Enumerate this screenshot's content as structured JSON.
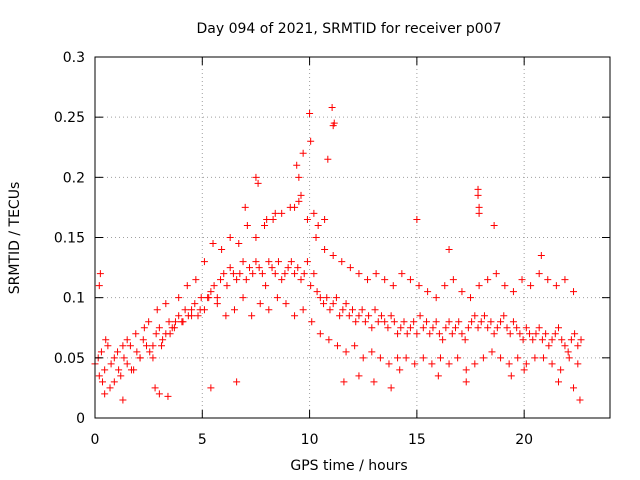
{
  "chart_data": {
    "type": "scatter",
    "title": "Day 094 of 2021, SRMTID for receiver p007",
    "xlabel": "GPS time / hours",
    "ylabel": "SRMTID / TECUs",
    "xlim": [
      0,
      24
    ],
    "ylim": [
      0,
      0.3
    ],
    "xticks": [
      0,
      5,
      10,
      15,
      20
    ],
    "xtick_labels": [
      "0",
      "5",
      "10",
      "15",
      "20"
    ],
    "yticks": [
      0,
      0.05,
      0.1,
      0.15,
      0.2,
      0.25,
      0.3
    ],
    "ytick_labels": [
      "0",
      "0.05",
      "0.1",
      "0.15",
      "0.2",
      "0.25",
      "0.3"
    ],
    "grid": true,
    "marker": "+",
    "marker_color": "#ff0000",
    "series": [
      {
        "name": "SRMTID",
        "x": [
          0.0,
          0.15,
          0.3,
          0.45,
          0.6,
          0.75,
          0.9,
          1.05,
          1.2,
          1.35,
          1.5,
          1.65,
          1.8,
          1.95,
          2.1,
          2.25,
          2.4,
          2.55,
          2.7,
          2.85,
          3.0,
          3.15,
          3.3,
          3.45,
          3.6,
          3.75,
          3.9,
          4.05,
          4.2,
          4.35,
          4.5,
          4.65,
          4.8,
          4.95,
          5.1,
          5.25,
          5.4,
          5.55,
          5.7,
          5.85,
          6.0,
          6.15,
          6.3,
          6.45,
          6.6,
          6.75,
          6.9,
          7.05,
          7.2,
          7.35,
          7.5,
          7.65,
          7.8,
          7.95,
          8.1,
          8.25,
          8.4,
          8.55,
          8.7,
          8.85,
          9.0,
          9.15,
          9.3,
          9.45,
          9.6,
          9.75,
          9.9,
          10.05,
          10.2,
          10.35,
          10.5,
          10.65,
          10.8,
          10.95,
          11.1,
          11.25,
          11.4,
          11.55,
          11.7,
          11.85,
          12.0,
          12.15,
          12.3,
          12.45,
          12.6,
          12.75,
          12.9,
          13.05,
          13.2,
          13.35,
          13.5,
          13.65,
          13.8,
          13.95,
          14.1,
          14.25,
          14.4,
          14.55,
          14.7,
          14.85,
          15.0,
          15.15,
          15.3,
          15.45,
          15.6,
          15.75,
          15.9,
          16.05,
          16.2,
          16.35,
          16.5,
          16.65,
          16.8,
          16.95,
          17.1,
          17.25,
          17.4,
          17.55,
          17.7,
          17.85,
          18.0,
          18.15,
          18.3,
          18.45,
          18.6,
          18.75,
          18.9,
          19.05,
          19.2,
          19.35,
          19.5,
          19.65,
          19.8,
          19.95,
          20.1,
          20.25,
          20.4,
          20.55,
          20.7,
          20.85,
          21.0,
          21.15,
          21.3,
          21.45,
          21.6,
          21.75,
          21.9,
          22.05,
          22.2,
          22.35,
          22.5,
          22.65,
          0.2,
          0.35,
          0.5,
          0.7,
          0.9,
          1.1,
          1.3,
          1.5,
          1.7,
          1.9,
          2.1,
          2.3,
          2.5,
          2.7,
          2.9,
          3.1,
          3.3,
          3.5,
          3.7,
          3.9,
          4.1,
          4.3,
          4.5,
          4.7,
          4.9,
          5.1,
          5.3,
          5.5,
          5.7,
          5.9,
          6.1,
          6.3,
          6.5,
          6.7,
          6.9,
          7.1,
          7.3,
          7.5,
          7.7,
          7.9,
          8.1,
          8.3,
          8.5,
          8.7,
          8.9,
          9.1,
          9.3,
          9.5,
          9.7,
          9.9,
          10.1,
          10.3,
          10.5,
          10.7,
          10.9,
          11.1,
          11.3,
          11.5,
          11.7,
          11.9,
          12.1,
          12.3,
          12.5,
          12.7,
          12.9,
          13.1,
          13.3,
          13.5,
          13.7,
          13.9,
          14.1,
          14.3,
          14.5,
          14.7,
          14.9,
          15.1,
          15.3,
          15.5,
          15.7,
          15.9,
          16.1,
          16.3,
          16.5,
          16.7,
          16.9,
          17.1,
          17.3,
          17.5,
          17.7,
          17.9,
          18.1,
          18.3,
          18.5,
          18.7,
          18.9,
          19.1,
          19.3,
          19.5,
          19.7,
          19.9,
          20.1,
          20.3,
          20.5,
          20.7,
          20.9,
          21.1,
          21.3,
          21.5,
          21.7,
          21.9,
          22.1,
          22.3,
          22.5,
          7.5,
          7.6,
          9.4,
          9.5,
          9.7,
          10.0,
          10.05,
          11.05,
          11.1,
          11.15,
          10.85,
          17.85,
          17.9,
          17.85,
          17.9,
          22.6,
          0.25,
          0.2,
          0.45,
          1.3,
          2.8,
          3.0,
          3.4,
          5.4,
          6.6,
          7.0,
          8.0,
          8.4,
          9.3,
          9.6,
          10.2,
          10.4,
          10.7,
          11.6,
          12.3,
          13.0,
          13.8,
          14.2,
          15.0,
          16.0,
          16.5,
          17.3,
          18.6,
          19.4,
          20.0,
          20.8,
          21.6,
          22.3
        ],
        "y": [
          0.045,
          0.05,
          0.055,
          0.04,
          0.06,
          0.045,
          0.05,
          0.055,
          0.035,
          0.05,
          0.045,
          0.06,
          0.04,
          0.055,
          0.05,
          0.065,
          0.06,
          0.055,
          0.06,
          0.07,
          0.075,
          0.065,
          0.07,
          0.08,
          0.075,
          0.08,
          0.085,
          0.08,
          0.09,
          0.085,
          0.09,
          0.095,
          0.085,
          0.1,
          0.09,
          0.1,
          0.105,
          0.11,
          0.1,
          0.115,
          0.12,
          0.11,
          0.125,
          0.12,
          0.115,
          0.12,
          0.13,
          0.115,
          0.125,
          0.12,
          0.13,
          0.125,
          0.12,
          0.11,
          0.13,
          0.125,
          0.12,
          0.13,
          0.115,
          0.12,
          0.125,
          0.13,
          0.12,
          0.125,
          0.115,
          0.12,
          0.13,
          0.11,
          0.12,
          0.105,
          0.1,
          0.095,
          0.1,
          0.09,
          0.095,
          0.1,
          0.085,
          0.09,
          0.095,
          0.085,
          0.09,
          0.08,
          0.085,
          0.09,
          0.08,
          0.085,
          0.075,
          0.09,
          0.08,
          0.085,
          0.08,
          0.075,
          0.085,
          0.08,
          0.07,
          0.075,
          0.08,
          0.07,
          0.075,
          0.08,
          0.07,
          0.085,
          0.075,
          0.08,
          0.07,
          0.075,
          0.08,
          0.07,
          0.065,
          0.075,
          0.08,
          0.07,
          0.075,
          0.08,
          0.07,
          0.065,
          0.075,
          0.08,
          0.085,
          0.075,
          0.08,
          0.085,
          0.075,
          0.08,
          0.07,
          0.075,
          0.08,
          0.085,
          0.075,
          0.07,
          0.08,
          0.075,
          0.07,
          0.065,
          0.075,
          0.07,
          0.065,
          0.07,
          0.075,
          0.065,
          0.07,
          0.06,
          0.065,
          0.07,
          0.075,
          0.065,
          0.06,
          0.055,
          0.065,
          0.07,
          0.06,
          0.065,
          0.035,
          0.03,
          0.065,
          0.025,
          0.03,
          0.04,
          0.06,
          0.065,
          0.04,
          0.07,
          0.05,
          0.075,
          0.08,
          0.05,
          0.09,
          0.06,
          0.095,
          0.07,
          0.075,
          0.1,
          0.08,
          0.11,
          0.085,
          0.115,
          0.09,
          0.13,
          0.1,
          0.145,
          0.095,
          0.14,
          0.085,
          0.15,
          0.09,
          0.145,
          0.1,
          0.16,
          0.085,
          0.15,
          0.095,
          0.16,
          0.09,
          0.165,
          0.1,
          0.17,
          0.095,
          0.175,
          0.085,
          0.18,
          0.09,
          0.165,
          0.08,
          0.15,
          0.07,
          0.14,
          0.065,
          0.135,
          0.06,
          0.13,
          0.055,
          0.125,
          0.06,
          0.12,
          0.05,
          0.115,
          0.055,
          0.12,
          0.05,
          0.115,
          0.045,
          0.11,
          0.05,
          0.12,
          0.05,
          0.115,
          0.045,
          0.11,
          0.05,
          0.105,
          0.045,
          0.1,
          0.05,
          0.11,
          0.045,
          0.115,
          0.05,
          0.105,
          0.04,
          0.1,
          0.045,
          0.11,
          0.05,
          0.115,
          0.055,
          0.12,
          0.05,
          0.11,
          0.045,
          0.105,
          0.05,
          0.115,
          0.045,
          0.11,
          0.05,
          0.12,
          0.05,
          0.115,
          0.045,
          0.11,
          0.04,
          0.115,
          0.05,
          0.105,
          0.045,
          0.2,
          0.195,
          0.21,
          0.2,
          0.22,
          0.253,
          0.23,
          0.258,
          0.243,
          0.245,
          0.215,
          0.19,
          0.17,
          0.185,
          0.175,
          0.015,
          0.12,
          0.11,
          0.02,
          0.015,
          0.025,
          0.02,
          0.018,
          0.025,
          0.03,
          0.175,
          0.165,
          0.17,
          0.175,
          0.185,
          0.17,
          0.16,
          0.165,
          0.03,
          0.035,
          0.03,
          0.025,
          0.04,
          0.165,
          0.035,
          0.14,
          0.03,
          0.16,
          0.035,
          0.04,
          0.135,
          0.03,
          0.025
        ]
      }
    ]
  }
}
